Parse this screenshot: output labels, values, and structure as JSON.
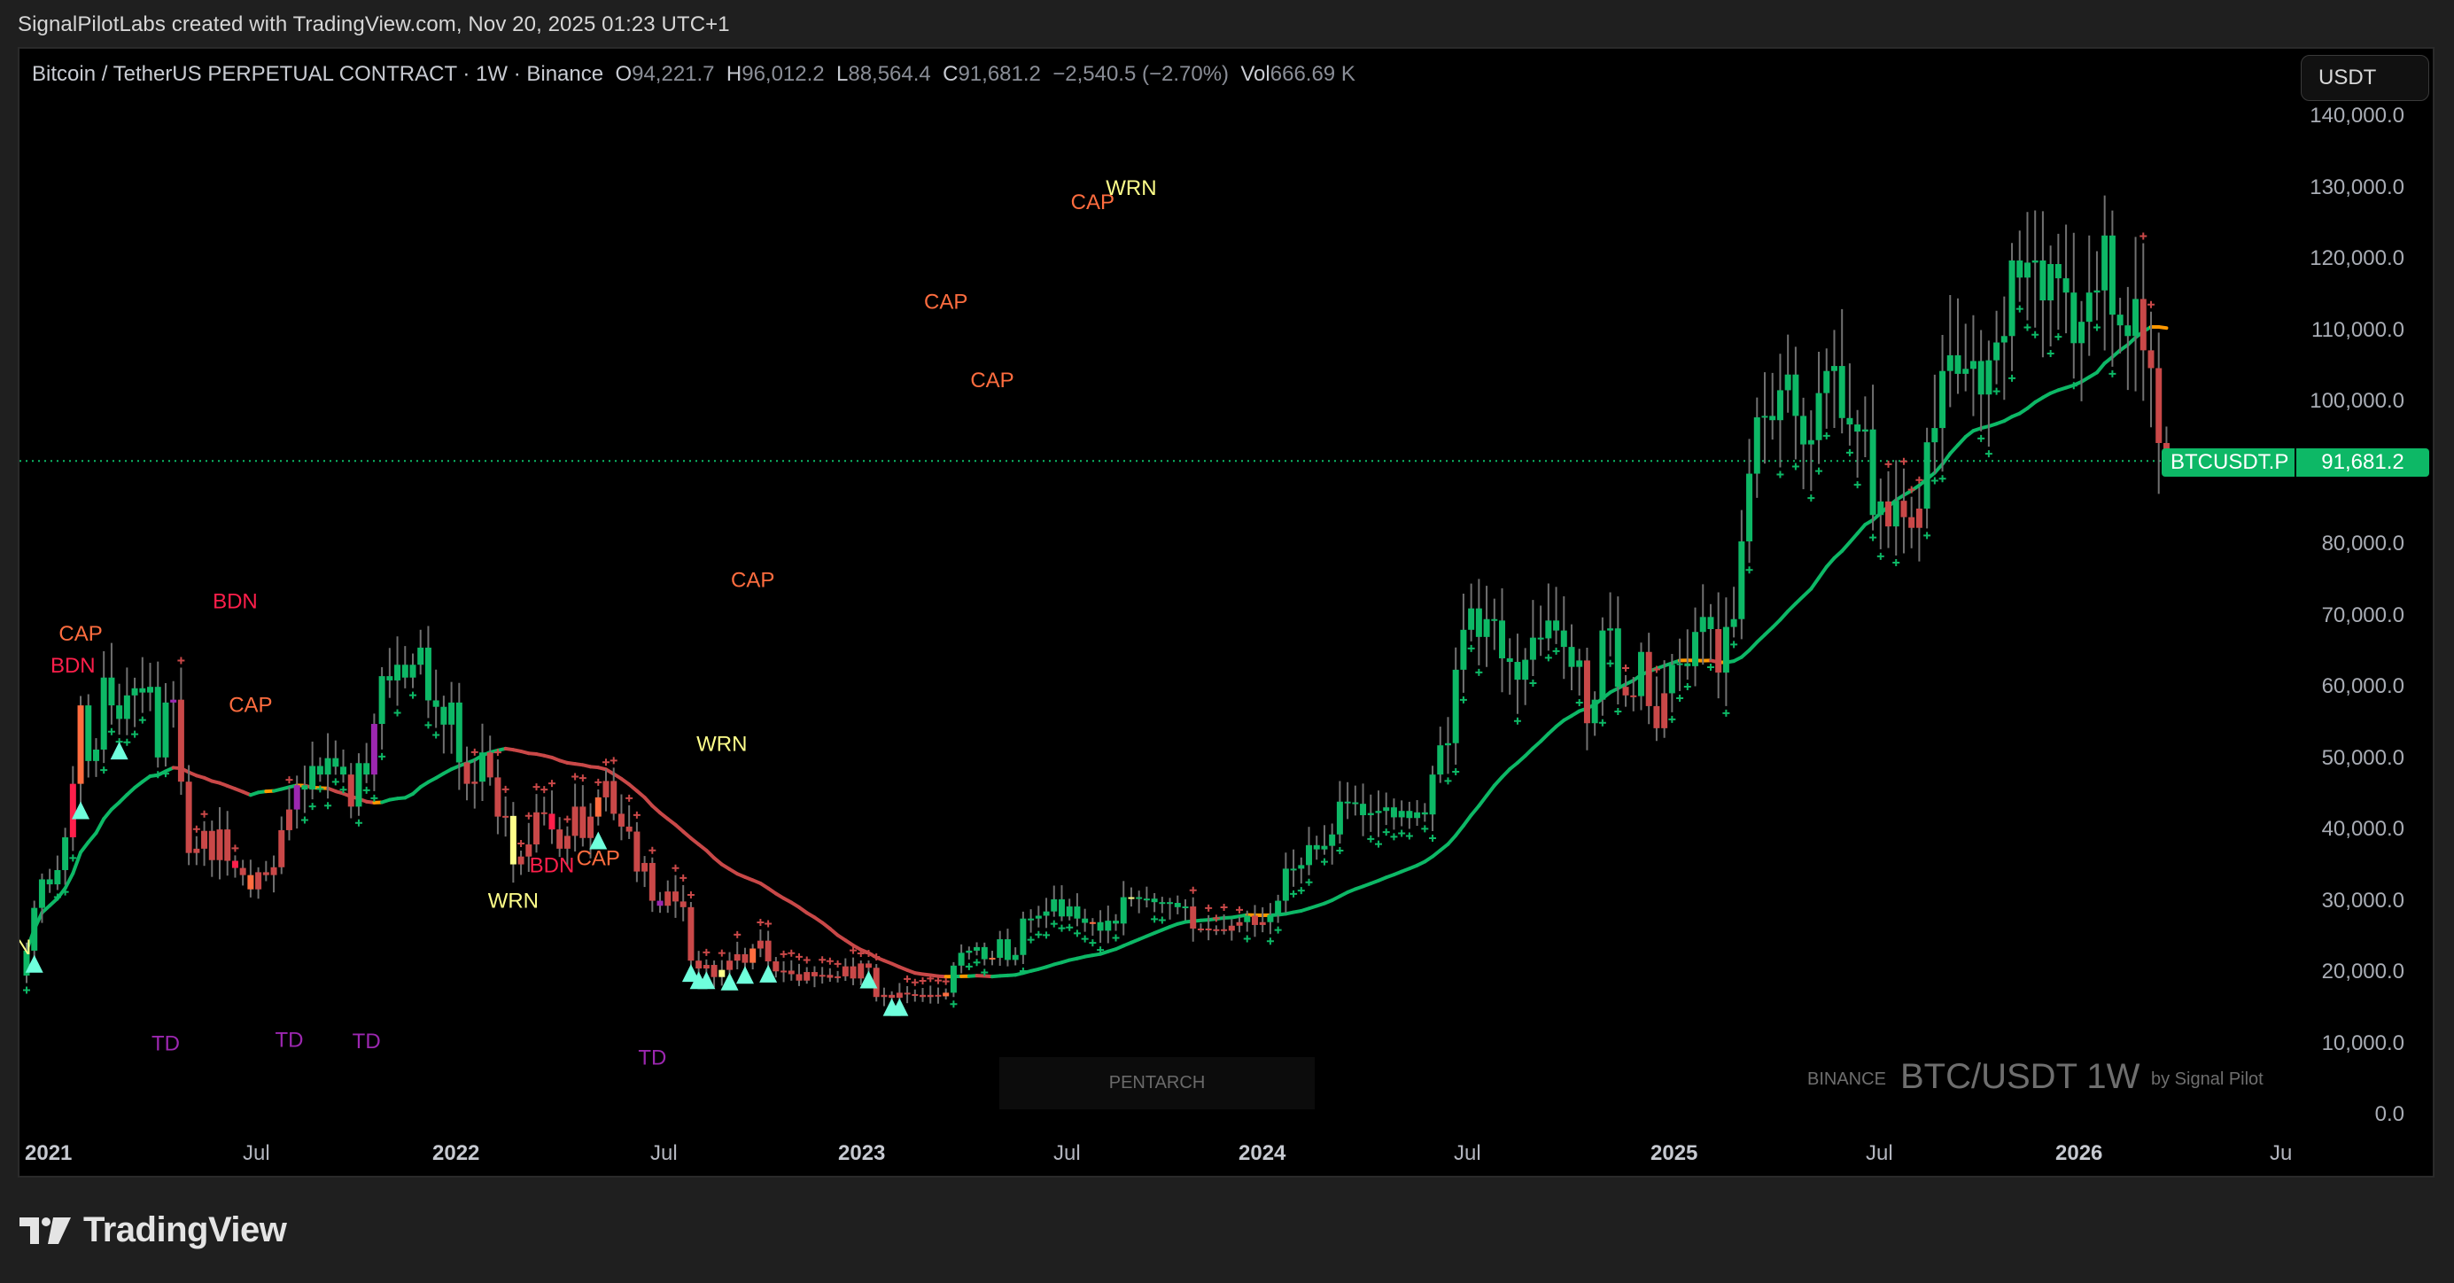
{
  "header": {
    "credit": "SignalPilotLabs created with TradingView.com, Nov 20, 2025 01:23 UTC+1"
  },
  "legend": {
    "title": "Bitcoin / TetherUS PERPETUAL CONTRACT · 1W · Binance",
    "o_label": "O",
    "o_value": "94,221.7",
    "h_label": "H",
    "h_value": "96,012.2",
    "l_label": "L",
    "l_value": "88,564.4",
    "c_label": "C",
    "c_value": "91,681.2",
    "change": "−2,540.5 (−2.70%)",
    "vol_label": "Vol",
    "vol_value": "666.69 K"
  },
  "currency_button": "USDT",
  "price_tag": {
    "symbol": "BTCUSDT.P",
    "value": "91,681.2"
  },
  "watermark": {
    "panel": "PENTARCH",
    "exchange": "BINANCE",
    "symbol": "BTC/USDT 1W",
    "by": "by Signal Pilot"
  },
  "footer": {
    "logo_text": "TradingView"
  },
  "colors": {
    "bull": "#0db866",
    "bear": "#c94848",
    "bdn": "#ff1f4b",
    "cap": "#ff6d3f",
    "wrn": "#ffff8a",
    "td": "#9c27b0",
    "ma_bull": "#0db866",
    "ma_bear": "#c94848",
    "ma_neutral": "#ff9800",
    "triangle": "#6fffdc",
    "wick": "#707070"
  },
  "chart_data": {
    "type": "candlestick",
    "title": "Bitcoin / TetherUS PERPETUAL CONTRACT · 1W · Binance",
    "interval": "1W",
    "ylabel": "USDT",
    "ylim": [
      0,
      140000
    ],
    "y_ticks": [
      "140,000.0",
      "130,000.0",
      "120,000.0",
      "110,000.0",
      "100,000.0",
      "90,000.0",
      "80,000.0",
      "70,000.0",
      "60,000.0",
      "50,000.0",
      "40,000.0",
      "30,000.0",
      "20,000.0",
      "10,000.0",
      "0.0"
    ],
    "x_ticks": [
      {
        "label": "2021",
        "x": 60,
        "year": true
      },
      {
        "label": "Jul",
        "x": 290,
        "year": false
      },
      {
        "label": "2022",
        "x": 520,
        "year": true
      },
      {
        "label": "Jul",
        "x": 750,
        "year": false
      },
      {
        "label": "2023",
        "x": 978,
        "year": true
      },
      {
        "label": "Jul",
        "x": 1205,
        "year": false
      },
      {
        "label": "2024",
        "x": 1430,
        "year": true
      },
      {
        "label": "Jul",
        "x": 1657,
        "year": false
      },
      {
        "label": "2025",
        "x": 1895,
        "year": true
      },
      {
        "label": "Jul",
        "x": 2122,
        "year": false
      },
      {
        "label": "2026",
        "x": 2352,
        "year": true
      },
      {
        "label": "Ju",
        "x": 2578,
        "year": false
      }
    ],
    "last_price": 91681.2,
    "weekly_close": [
      23000,
      29000,
      33000,
      32300,
      34300,
      38900,
      46400,
      57400,
      49600,
      51200,
      61300,
      57400,
      55500,
      58800,
      59800,
      59200,
      60000,
      50100,
      57800,
      58200,
      46700,
      36700,
      37300,
      39800,
      35700,
      40000,
      35600,
      34600,
      33600,
      31600,
      34000,
      33600,
      34700,
      39900,
      42800,
      46200,
      45600,
      48900,
      47700,
      50000,
      48800,
      47700,
      43200,
      49300,
      47700,
      54800,
      61500,
      60900,
      63100,
      61300,
      63100,
      65500,
      58100,
      57200,
      54700,
      57800,
      49400,
      46400,
      46700,
      50800,
      47300,
      41800,
      41900,
      35100,
      36200,
      37900,
      42400,
      42200,
      40000,
      37300,
      39100,
      43200,
      38800,
      41800,
      44500,
      46800,
      42200,
      40400,
      39700,
      34100,
      35300,
      30000,
      29300,
      31300,
      29900,
      29100,
      21600,
      20500,
      21000,
      19300,
      20300,
      21600,
      22500,
      21300,
      23300,
      24400,
      21500,
      20100,
      20200,
      19700,
      18800,
      20000,
      19400,
      19600,
      19200,
      19400,
      20800,
      19100,
      21200,
      20600,
      16500,
      16800,
      16400,
      17100,
      16900,
      16800,
      16500,
      16800,
      16600,
      17100,
      20900,
      22700,
      23000,
      23500,
      21800,
      22000,
      24600,
      21700,
      22400,
      27500,
      27500,
      27900,
      28500,
      30200,
      27800,
      29200,
      27500,
      26900,
      27000,
      25800,
      27200,
      26800,
      30500,
      30500,
      30300,
      30300,
      29800,
      29800,
      29700,
      29100,
      29200,
      26100,
      26100,
      26000,
      26000,
      25800,
      26500,
      27000,
      27900,
      26600,
      27000,
      28000,
      30000,
      34500,
      34500,
      35000,
      37800,
      37200,
      37700,
      39300,
      43900,
      43800,
      43600,
      42000,
      42300,
      42600,
      43100,
      41700,
      42600,
      41600,
      42400,
      42100,
      47700,
      51800,
      52100,
      62400,
      68000,
      71000,
      67000,
      69500,
      69300,
      64000,
      63500,
      61000,
      63800,
      66900,
      66800,
      69300,
      67900,
      65600,
      62800,
      63700,
      54900,
      58200,
      67900,
      68200,
      60000,
      58800,
      58700,
      64900,
      57300,
      54200,
      59100,
      63100,
      63300,
      62900,
      67700,
      69800,
      68100,
      62000,
      68400,
      69500,
      80400,
      89900,
      97800,
      98000,
      97400,
      101600,
      103800,
      98000,
      94000,
      94600,
      101200,
      104300,
      105000,
      97700,
      96800,
      95800,
      96100,
      84100,
      86000,
      82500,
      86100,
      83800,
      82300,
      85000,
      94300,
      96300,
      104300,
      106500,
      103900,
      104600,
      105700,
      101000,
      105800,
      108300,
      109200,
      119800,
      117400,
      119500,
      119800,
      114200,
      119300,
      117300,
      115300,
      108200,
      111200,
      115300,
      115600,
      123300,
      112200,
      110700,
      109200,
      114400,
      107200,
      104700,
      94200,
      91681
    ],
    "ma_period_approx": 30,
    "annotations": [
      {
        "text": "N",
        "kind": "WRN",
        "week": 0,
        "price": 22500
      },
      {
        "text": "BDN",
        "kind": "BDN",
        "week": 6,
        "price": 62000
      },
      {
        "text": "CAP",
        "kind": "CAP",
        "week": 7,
        "price": 66500
      },
      {
        "text": "TD",
        "kind": "TD",
        "week": 18,
        "price": 9000
      },
      {
        "text": "BDN",
        "kind": "BDN",
        "week": 27,
        "price": 71000
      },
      {
        "text": "CAP",
        "kind": "CAP",
        "week": 29,
        "price": 56500
      },
      {
        "text": "TD",
        "kind": "TD",
        "week": 34,
        "price": 9500
      },
      {
        "text": "TD",
        "kind": "TD",
        "week": 44,
        "price": 9300
      },
      {
        "text": "WRN",
        "kind": "WRN",
        "week": 63,
        "price": 29000
      },
      {
        "text": "BDN",
        "kind": "BDN",
        "week": 68,
        "price": 34000
      },
      {
        "text": "CAP",
        "kind": "CAP",
        "week": 74,
        "price": 35000
      },
      {
        "text": "TD",
        "kind": "TD",
        "week": 81,
        "price": 7000
      },
      {
        "text": "WRN",
        "kind": "WRN",
        "week": 90,
        "price": 51000
      },
      {
        "text": "CAP",
        "kind": "CAP",
        "week": 94,
        "price": 74000
      },
      {
        "text": "CAP",
        "kind": "CAP",
        "week": 119,
        "price": 113000
      },
      {
        "text": "CAP",
        "kind": "CAP",
        "week": 125,
        "price": 102000
      },
      {
        "text": "CAP",
        "kind": "CAP",
        "week": 138,
        "price": 127000
      },
      {
        "text": "WRN",
        "kind": "WRN",
        "week": 143,
        "price": 129000
      }
    ]
  }
}
